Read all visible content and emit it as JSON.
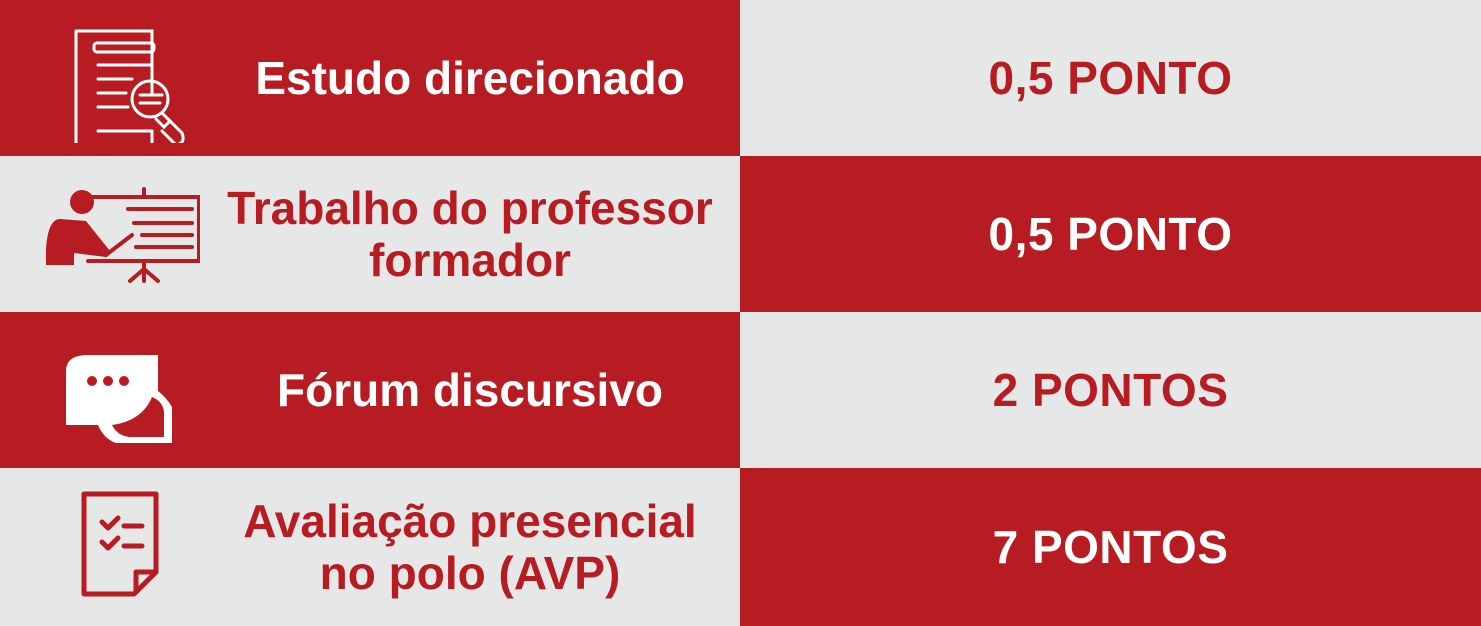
{
  "colors": {
    "red": "#b71c22",
    "grey": "#e6e7e7",
    "white": "#ffffff"
  },
  "rows": [
    {
      "icon": "document-search-icon",
      "label": "Estudo direcionado",
      "value": "0,5 PONTO"
    },
    {
      "icon": "teacher-presentation-icon",
      "label": "Trabalho do professor formador",
      "value": "0,5 PONTO"
    },
    {
      "icon": "chat-bubbles-icon",
      "label": "Fórum discursivo",
      "value": "2 PONTOS"
    },
    {
      "icon": "checklist-document-icon",
      "label": "Avaliação presencial no polo (AVP)",
      "value": "7 PONTOS"
    }
  ]
}
